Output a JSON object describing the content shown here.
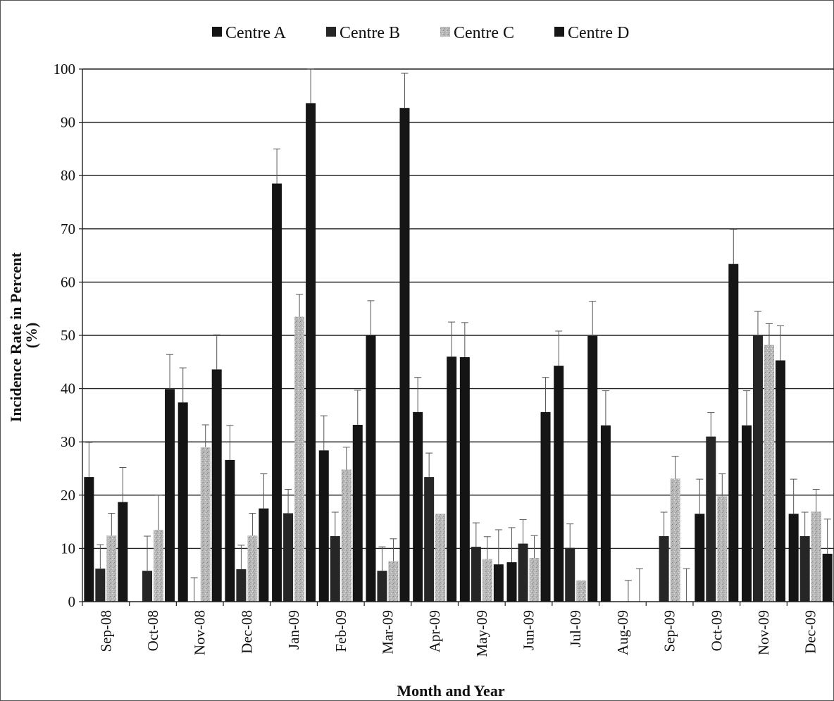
{
  "chart_data": {
    "type": "bar",
    "title": "",
    "xlabel": "Month and Year",
    "ylabel": "Incidence Rate in Percent (%)",
    "ylabel_lines": [
      "Incidence Rate in Percent",
      "(%)"
    ],
    "ylim": [
      0,
      100
    ],
    "yticks": [
      0,
      10,
      20,
      30,
      40,
      50,
      60,
      70,
      80,
      90,
      100
    ],
    "grid": true,
    "legend_position": "top",
    "categories": [
      "Sep-08",
      "Oct-08",
      "Nov-08",
      "Dec-08",
      "Jan-09",
      "Feb-09",
      "Mar-09",
      "Apr-09",
      "May-09",
      "Jun-09",
      "Jul-09",
      "Aug-09",
      "Sep-09",
      "Oct-09",
      "Nov-09",
      "Dec-09"
    ],
    "series": [
      {
        "name": "Centre A",
        "color": "#141414",
        "values": [
          23.4,
          0,
          37.4,
          26.6,
          78.5,
          28.4,
          50.0,
          35.6,
          45.9,
          7.4,
          44.3,
          33.1,
          0,
          16.5,
          33.1,
          16.5
        ],
        "errors": [
          6.5,
          0,
          6.5,
          6.5,
          6.5,
          6.5,
          6.5,
          6.5,
          6.5,
          6.5,
          6.5,
          6.5,
          0,
          6.5,
          6.5,
          6.5
        ]
      },
      {
        "name": "Centre B",
        "color": "#262626",
        "values": [
          6.2,
          5.8,
          0,
          6.1,
          16.6,
          12.3,
          5.8,
          23.4,
          10.3,
          10.9,
          10.1,
          0,
          12.3,
          31.0,
          50.0,
          12.3
        ],
        "errors": [
          4.5,
          6.5,
          4.5,
          4.5,
          4.5,
          4.5,
          4.5,
          4.5,
          4.5,
          4.5,
          4.5,
          0,
          4.5,
          4.5,
          4.5,
          4.5
        ]
      },
      {
        "name": "Centre C",
        "color": "#b5b5b5",
        "values": [
          12.4,
          13.5,
          29.0,
          12.4,
          53.5,
          24.8,
          7.6,
          16.5,
          8.0,
          8.2,
          4.0,
          0,
          23.1,
          19.8,
          48.2,
          16.9
        ],
        "errors": [
          4.2,
          6.5,
          4.2,
          4.2,
          4.2,
          4.2,
          4.2,
          0,
          4.2,
          4.2,
          0,
          4.0,
          4.2,
          4.2,
          4.0,
          4.2
        ]
      },
      {
        "name": "Centre D",
        "color": "#161616",
        "values": [
          18.7,
          39.9,
          43.6,
          17.5,
          93.6,
          33.2,
          92.7,
          46.0,
          7.0,
          35.6,
          49.9,
          0,
          0,
          63.4,
          45.3,
          9.0
        ],
        "errors": [
          6.5,
          6.5,
          6.5,
          6.5,
          6.5,
          6.5,
          6.5,
          6.5,
          6.5,
          6.5,
          6.5,
          6.2,
          6.2,
          6.5,
          6.5,
          6.5
        ]
      }
    ]
  }
}
